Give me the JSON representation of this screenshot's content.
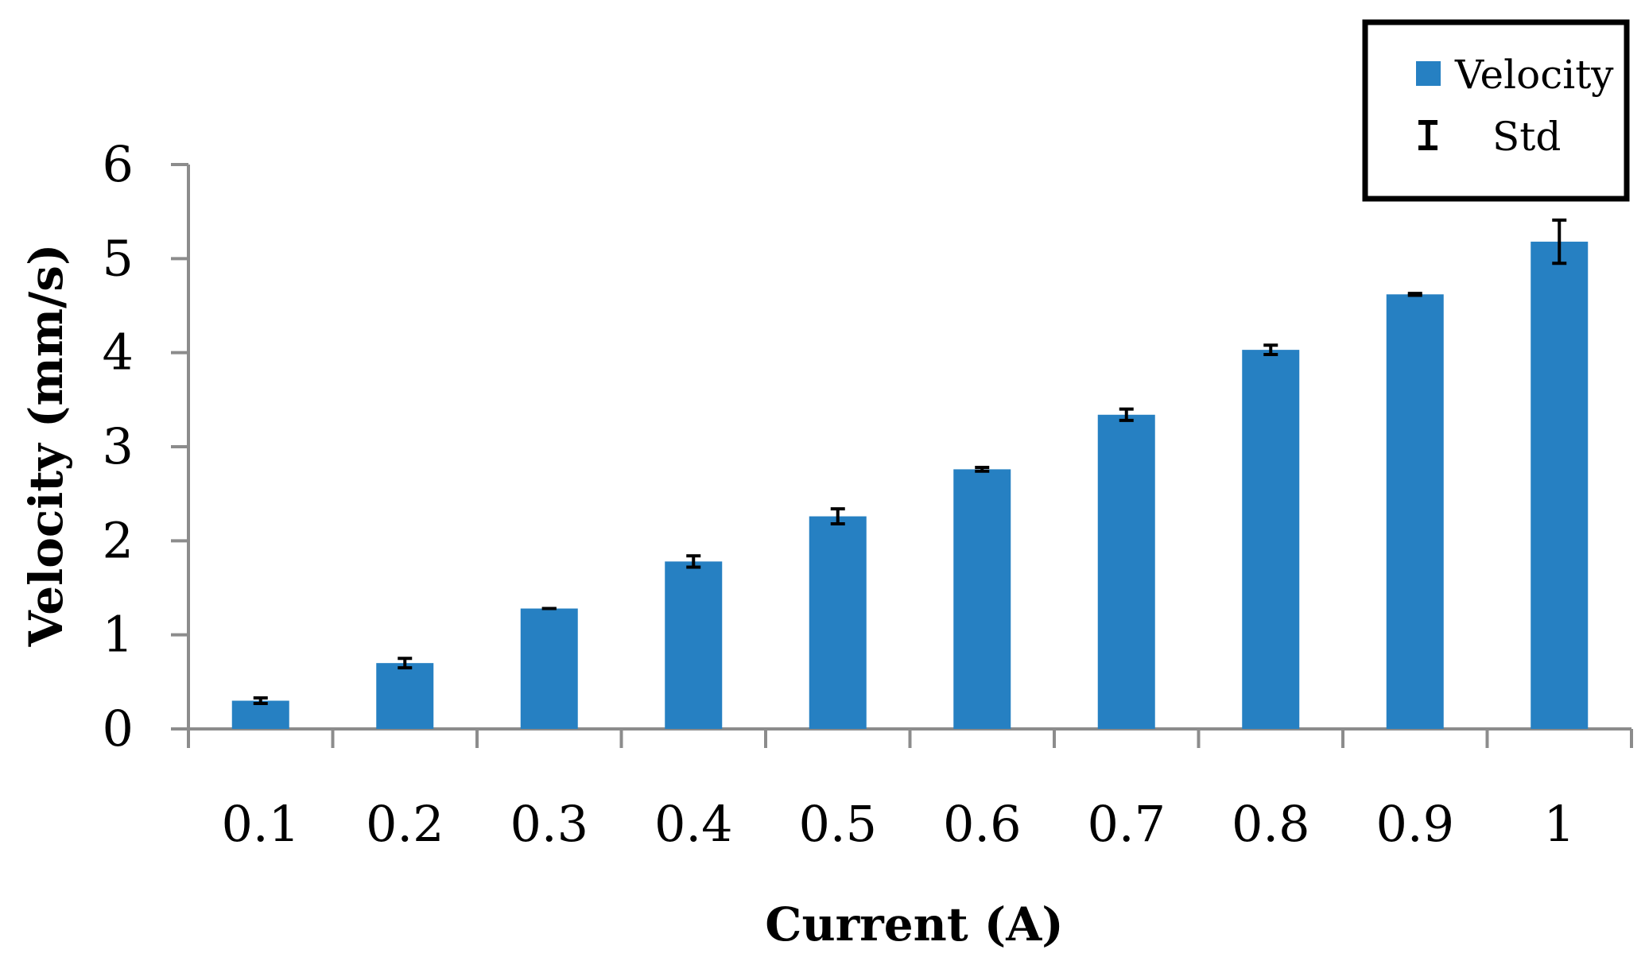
{
  "chart_data": {
    "type": "bar",
    "xlabel": "Current (A)",
    "ylabel": "Velocity (mm/s)",
    "categories": [
      "0.1",
      "0.2",
      "0.3",
      "0.4",
      "0.5",
      "0.6",
      "0.7",
      "0.8",
      "0.9",
      "1"
    ],
    "series": [
      {
        "name": "Velocity",
        "values": [
          0.3,
          0.7,
          1.28,
          1.78,
          2.26,
          2.76,
          3.34,
          4.03,
          4.62,
          5.18
        ],
        "error": [
          0.03,
          0.05,
          0.0,
          0.06,
          0.08,
          0.02,
          0.06,
          0.05,
          0.01,
          0.23
        ],
        "error_name": "Std",
        "color": "#2680C2"
      }
    ],
    "ylim": [
      0,
      6
    ],
    "yticks": [
      "0",
      "1",
      "2",
      "3",
      "4",
      "5",
      "6"
    ],
    "grid": false,
    "legend_position": "top-right"
  }
}
